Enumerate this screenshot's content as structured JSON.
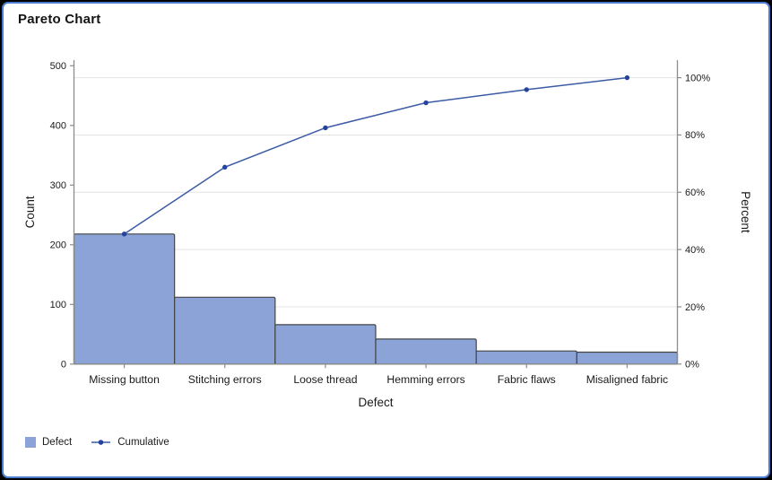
{
  "window": {
    "title": "Pareto Chart",
    "border_color": "#4B7CD0",
    "outer_background": "#000000",
    "background": "#FFFFFF"
  },
  "legend": {
    "defect": "Defect",
    "cumulative": "Cumulative"
  },
  "axes": {
    "left": {
      "title": "Count",
      "ticks": [
        "0",
        "100",
        "200",
        "300",
        "400",
        "500"
      ]
    },
    "right": {
      "title": "Percent",
      "ticks": [
        "0%",
        "20%",
        "40%",
        "60%",
        "80%",
        "100%"
      ]
    },
    "bottom": {
      "title": "Defect"
    }
  },
  "colors": {
    "bar_fill": "#8BA3D6",
    "bar_stroke": "#454545",
    "line": "#3B5BA5",
    "marker": "#24439B",
    "gridline": "#E4E4E4",
    "axis_line": "#8C8C8C",
    "text": "#1A1A1A"
  },
  "chart_data": {
    "type": "pareto (bar + cumulative line)",
    "title": "Pareto Chart",
    "categories": [
      "Missing button",
      "Stitching errors",
      "Loose thread",
      "Hemming errors",
      "Fabric flaws",
      "Misaligned fabric"
    ],
    "series": [
      {
        "name": "Defect",
        "type": "bar",
        "axis": "left",
        "values": [
          218,
          112,
          66,
          42,
          22,
          20
        ]
      },
      {
        "name": "Cumulative",
        "type": "line",
        "axis": "right",
        "values_percent": [
          45.4,
          68.8,
          82.5,
          91.3,
          95.8,
          100.0
        ],
        "cumulative_counts": [
          218,
          330,
          396,
          438,
          460,
          480
        ]
      }
    ],
    "total": 480,
    "xlabel": "Defect",
    "ylabel_left": "Count",
    "ylabel_right": "Percent",
    "ylim_left": [
      0,
      500
    ],
    "ylim_right": [
      "0%",
      "100%"
    ],
    "grid": "horizontal gridlines at right-axis 20% intervals",
    "legend_position": "bottom-left"
  }
}
